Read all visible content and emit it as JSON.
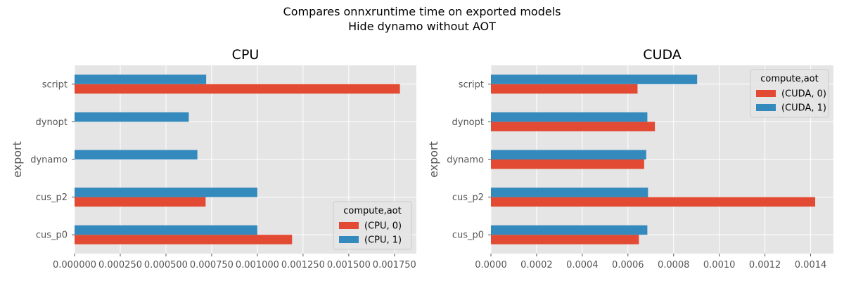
{
  "figure": {
    "title_line1": "Compares onnxruntime time on exported models",
    "title_line2": "Hide dynamo without AOT"
  },
  "colors": {
    "series0": "#E24A33",
    "series1": "#348ABD",
    "plot_bg": "#E5E5E5",
    "grid": "#FFFFFF",
    "tick_text": "#555555"
  },
  "chart_data": [
    {
      "type": "bar",
      "orientation": "horizontal",
      "title": "CPU",
      "xlabel": "",
      "ylabel": "export",
      "categories": [
        "cus_p0",
        "cus_p2",
        "dynamo",
        "dynopt",
        "script"
      ],
      "series": [
        {
          "name": "(CPU, 0)",
          "values": [
            0.00119,
            0.000717,
            null,
            null,
            0.00178
          ]
        },
        {
          "name": "(CPU, 1)",
          "values": [
            0.001,
            0.001,
            0.000672,
            0.000625,
            0.00072
          ]
        }
      ],
      "xlim": [
        0,
        0.00187
      ],
      "xticks": [
        0,
        0.00025,
        0.0005,
        0.00075,
        0.001,
        0.00125,
        0.0015,
        0.00175
      ],
      "xtick_labels": [
        "0.000000",
        "0.000250",
        "0.000500",
        "0.000750",
        "0.001000",
        "0.001250",
        "0.001500",
        "0.001750"
      ],
      "legend": {
        "title": "compute,aot",
        "position": "lower-right"
      },
      "grid": true
    },
    {
      "type": "bar",
      "orientation": "horizontal",
      "title": "CUDA",
      "xlabel": "",
      "ylabel": "export",
      "categories": [
        "cus_p0",
        "cus_p2",
        "dynamo",
        "dynopt",
        "script"
      ],
      "series": [
        {
          "name": "(CUDA, 0)",
          "values": [
            0.000648,
            0.00142,
            0.000671,
            0.000718,
            0.000642
          ]
        },
        {
          "name": "(CUDA, 1)",
          "values": [
            0.000685,
            0.000688,
            0.00068,
            0.000685,
            0.000903
          ]
        }
      ],
      "xlim": [
        0,
        0.0015
      ],
      "xticks": [
        0,
        0.0002,
        0.0004,
        0.0006,
        0.0008,
        0.001,
        0.0012,
        0.0014
      ],
      "xtick_labels": [
        "0.0000",
        "0.0002",
        "0.0004",
        "0.0006",
        "0.0008",
        "0.0010",
        "0.0012",
        "0.0014"
      ],
      "legend": {
        "title": "compute,aot",
        "position": "top-right"
      },
      "grid": true
    }
  ]
}
